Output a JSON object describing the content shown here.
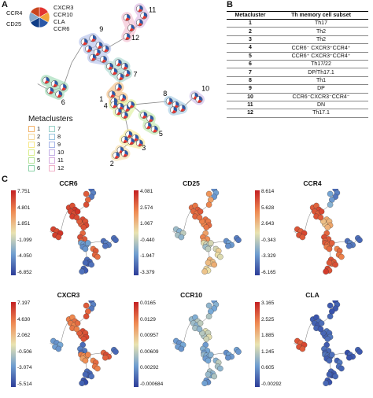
{
  "panels": {
    "a": "A",
    "b": "B",
    "c": "C"
  },
  "legend_markers": {
    "items": [
      {
        "label": "CCR4"
      },
      {
        "label": "CD25"
      },
      {
        "label": "CXCR3"
      },
      {
        "label": "CCR10"
      },
      {
        "label": "CLA"
      },
      {
        "label": "CCR6"
      }
    ],
    "colors": [
      "#e3342f",
      "#f2a33a",
      "#2b57a7",
      "#0e3c86",
      "#88aacc",
      "#c9451f"
    ]
  },
  "metaclusters_legend": {
    "title": "Metaclusters",
    "items": [
      {
        "label": "1",
        "color": "#f2b36b"
      },
      {
        "label": "2",
        "color": "#f6d89a"
      },
      {
        "label": "3",
        "color": "#f7e98a"
      },
      {
        "label": "4",
        "color": "#d9ee8c"
      },
      {
        "label": "5",
        "color": "#b5e39a"
      },
      {
        "label": "6",
        "color": "#8dd3a8"
      },
      {
        "label": "7",
        "color": "#9ad1c8"
      },
      {
        "label": "8",
        "color": "#98c4e0"
      },
      {
        "label": "9",
        "color": "#a8b6e8"
      },
      {
        "label": "10",
        "color": "#c3b0e6"
      },
      {
        "label": "11",
        "color": "#d8aee0"
      },
      {
        "label": "12",
        "color": "#f1b2c9"
      }
    ]
  },
  "tree_labels": [
    "1",
    "2",
    "3",
    "4",
    "5",
    "6",
    "7",
    "8",
    "9",
    "10",
    "11",
    "12"
  ],
  "table": {
    "headers": [
      "Metacluster",
      "Th memory cell subset"
    ],
    "rows": [
      {
        "mc": "1",
        "subset": "Th17"
      },
      {
        "mc": "2",
        "subset": "Th2"
      },
      {
        "mc": "3",
        "subset": "Th2"
      },
      {
        "mc": "4",
        "subset": "CCR6⁻ CXCR3⁺CCR4⁺"
      },
      {
        "mc": "5",
        "subset": "CCR6⁺ CXCR3⁺CCR4⁺"
      },
      {
        "mc": "6",
        "subset": "Th17/22"
      },
      {
        "mc": "7",
        "subset": "DP/Th17.1"
      },
      {
        "mc": "8",
        "subset": "Th1"
      },
      {
        "mc": "9",
        "subset": "DP"
      },
      {
        "mc": "10",
        "subset": "CCR6⁻CXCR3⁻CCR4⁻"
      },
      {
        "mc": "11",
        "subset": "DN"
      },
      {
        "mc": "12",
        "subset": "Th17.1"
      }
    ]
  },
  "heatmaps": [
    {
      "title": "CCR6",
      "ticks": [
        "7.751",
        "4.801",
        "1.851",
        "-1.099",
        "-4.050",
        "-6.852"
      ],
      "scheme": "ccr6"
    },
    {
      "title": "CD25",
      "ticks": [
        "4.081",
        "2.574",
        "1.067",
        "-0.440",
        "-1.947",
        "-3.379"
      ],
      "scheme": "cd25"
    },
    {
      "title": "CCR4",
      "ticks": [
        "8.614",
        "5.628",
        "2.643",
        "-0.343",
        "-3.329",
        "-6.165"
      ],
      "scheme": "ccr4"
    },
    {
      "title": "CXCR3",
      "ticks": [
        "7.197",
        "4.630",
        "2.062",
        "-0.506",
        "-3.074",
        "-5.514"
      ],
      "scheme": "cxcr3"
    },
    {
      "title": "CCR10",
      "ticks": [
        "0.0165",
        "0.0129",
        "0.00957",
        "0.00609",
        "0.00292",
        "-0.000684"
      ],
      "scheme": "ccr10"
    },
    {
      "title": "CLA",
      "ticks": [
        "3.165",
        "2.525",
        "1.885",
        "1.245",
        "0.605",
        "-0.00292"
      ],
      "scheme": "cla"
    }
  ]
}
